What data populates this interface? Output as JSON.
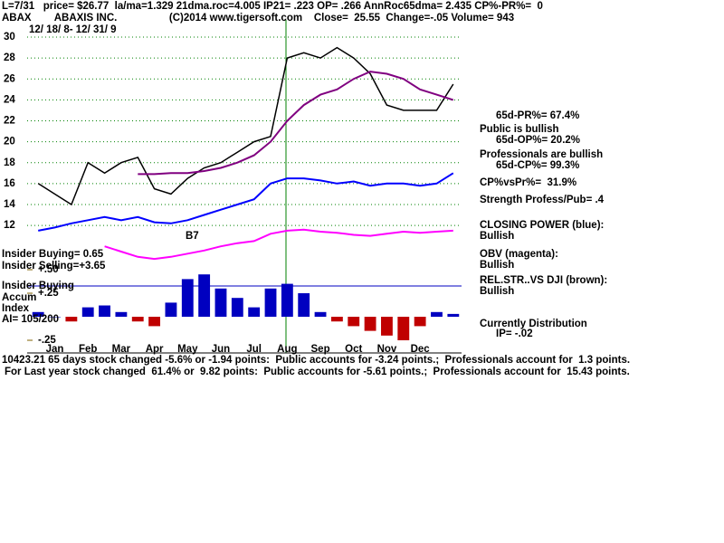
{
  "chart_data": {
    "type": "line",
    "title": "ABAX        ABAXIS INC.                  (C)2014 www.tigersoft.com    Close=  25.55  Change=-.05 Volume= 943",
    "header": "L=7/31   price= $26.77  la/ma=1.329 21dma.roc=4.005 IP21= .223 OP= .266 AnnRoc65dma= 2.435 CP%-PR%=  0",
    "subtitle": "12/ 18/ 8- 12/ 31/ 9",
    "categories": [
      null,
      "Jan",
      null,
      "Feb",
      null,
      "Mar",
      null,
      "Apr",
      null,
      "May",
      null,
      "Jun",
      null,
      "Jul",
      null,
      "Aug",
      null,
      "Sep",
      null,
      "Oct",
      null,
      "Nov",
      null,
      "Dec",
      null,
      null
    ],
    "ylim": [
      4.5,
      31
    ],
    "yticks": [
      12,
      14,
      16,
      18,
      20,
      22,
      24,
      26,
      28,
      30
    ],
    "grid": true,
    "series": [
      {
        "name": "Price",
        "color": "#000000",
        "values": [
          16,
          15,
          14,
          18,
          17,
          18,
          18.5,
          15.5,
          15,
          16.5,
          17.5,
          18,
          19,
          20,
          20.5,
          28,
          28.5,
          28,
          29,
          28,
          26.5,
          23.5,
          23,
          23,
          23,
          25.5
        ]
      },
      {
        "name": "65-dma",
        "color": "#800080",
        "values": [
          null,
          null,
          null,
          null,
          null,
          null,
          16.9,
          16.9,
          17,
          17,
          17.2,
          17.5,
          18,
          18.7,
          20,
          22,
          23.5,
          24.5,
          25,
          26,
          26.7,
          26.5,
          26,
          25,
          24.5,
          24
        ]
      },
      {
        "name": "Closing Power",
        "color": "#0000ff",
        "values": [
          11.5,
          11.8,
          12.2,
          12.5,
          12.8,
          12.5,
          12.8,
          12.3,
          12.2,
          12.5,
          13,
          13.5,
          14,
          14.5,
          16,
          16.5,
          16.5,
          16.3,
          16,
          16.2,
          15.8,
          16,
          16,
          15.8,
          16,
          17
        ]
      },
      {
        "name": "OBV",
        "color": "#ff00ff",
        "values": [
          null,
          null,
          null,
          null,
          10,
          9.5,
          9,
          8.8,
          9,
          9.3,
          9.6,
          10,
          10.3,
          10.5,
          11.2,
          11.5,
          11.6,
          11.4,
          11.3,
          11.1,
          11,
          11.2,
          11.4,
          11.3,
          11.4,
          11.5
        ]
      }
    ],
    "accum": {
      "ylim": [
        -0.3,
        0.55
      ],
      "yticks": [
        {
          "value": 0.5,
          "label": "+.50"
        },
        {
          "value": 0.25,
          "label": "+.25"
        },
        {
          "value": -0.25,
          "label": "-.25"
        }
      ],
      "values": [
        0.05,
        0,
        -0.05,
        0.1,
        0.12,
        0.05,
        -0.05,
        -0.1,
        0.15,
        0.4,
        0.45,
        0.3,
        0.2,
        0.1,
        0.3,
        0.35,
        0.25,
        0.05,
        -0.05,
        -0.1,
        -0.15,
        -0.2,
        -0.25,
        -0.1,
        0.05,
        0.03
      ]
    },
    "left_notes": [
      "Insider Buying= 0.65",
      "Insider Selling=+3.65",
      "Insider Buying",
      "Accum",
      "Index",
      "AI= 105/200",
      "B7"
    ],
    "right_notes": [
      "65d-PR%= 67.4%",
      "Public is bullish",
      "65d-OP%= 20.2%",
      "Professionals are bullish",
      "65d-CP%= 99.3%",
      "CP%vsPr%=  31.9%",
      "Strength Profess/Pub= .4",
      "CLOSING POWER (blue):",
      "Bullish",
      "OBV (magenta):",
      "Bullish",
      "REL.STR..VS DJI (brown):",
      "Bullish",
      "Currently Distribution",
      "IP= -.02"
    ],
    "footer": [
      "10423.21 65 days stock changed -5.6% or -1.94 points:  Public accounts for -3.24 points.;  Professionals account for  1.3 points.",
      "For Last year stock changed  61.4% or  9.82 points:  Public accounts for -5.61 points.;  Professionals account for  15.43 points."
    ]
  }
}
